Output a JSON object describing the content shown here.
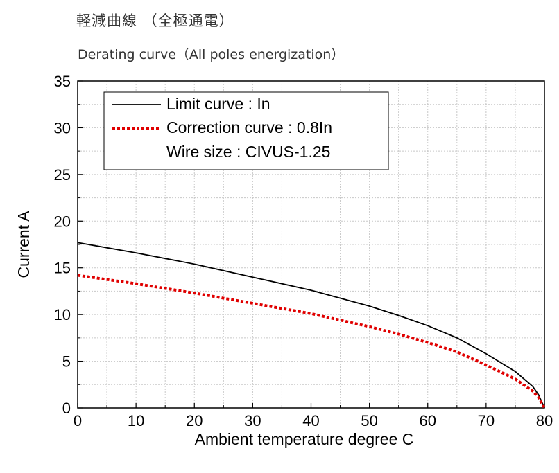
{
  "chart_data": {
    "type": "line",
    "title": "軽減曲線 （全極通電）",
    "subtitle": "Derating curve（All poles energization）",
    "xlabel": "Ambient temperature  degree C",
    "ylabel": "Current  A",
    "xlim": [
      0,
      80
    ],
    "ylim": [
      0,
      35
    ],
    "xticks": [
      0,
      10,
      20,
      30,
      40,
      50,
      60,
      70,
      80
    ],
    "yticks": [
      0,
      5,
      10,
      15,
      20,
      25,
      30,
      35
    ],
    "grid": true,
    "legend_position": "top-left",
    "legend_note": "Wire size : CIVUS-1.25",
    "series": [
      {
        "name": "Limit curve : In",
        "color": "#000000",
        "style": "solid",
        "x": [
          0,
          10,
          20,
          30,
          40,
          50,
          55,
          60,
          65,
          70,
          75,
          78,
          79,
          80
        ],
        "y": [
          17.7,
          16.6,
          15.4,
          14.0,
          12.6,
          10.9,
          9.9,
          8.8,
          7.5,
          5.8,
          3.9,
          2.3,
          1.4,
          0
        ]
      },
      {
        "name": "Correction curve : 0.8In",
        "color": "#e00000",
        "style": "dotted",
        "x": [
          0,
          10,
          20,
          30,
          40,
          50,
          55,
          60,
          65,
          70,
          75,
          78,
          79,
          80
        ],
        "y": [
          14.2,
          13.3,
          12.3,
          11.2,
          10.1,
          8.7,
          7.9,
          7.0,
          6.0,
          4.6,
          3.1,
          1.8,
          1.1,
          0
        ]
      }
    ]
  }
}
